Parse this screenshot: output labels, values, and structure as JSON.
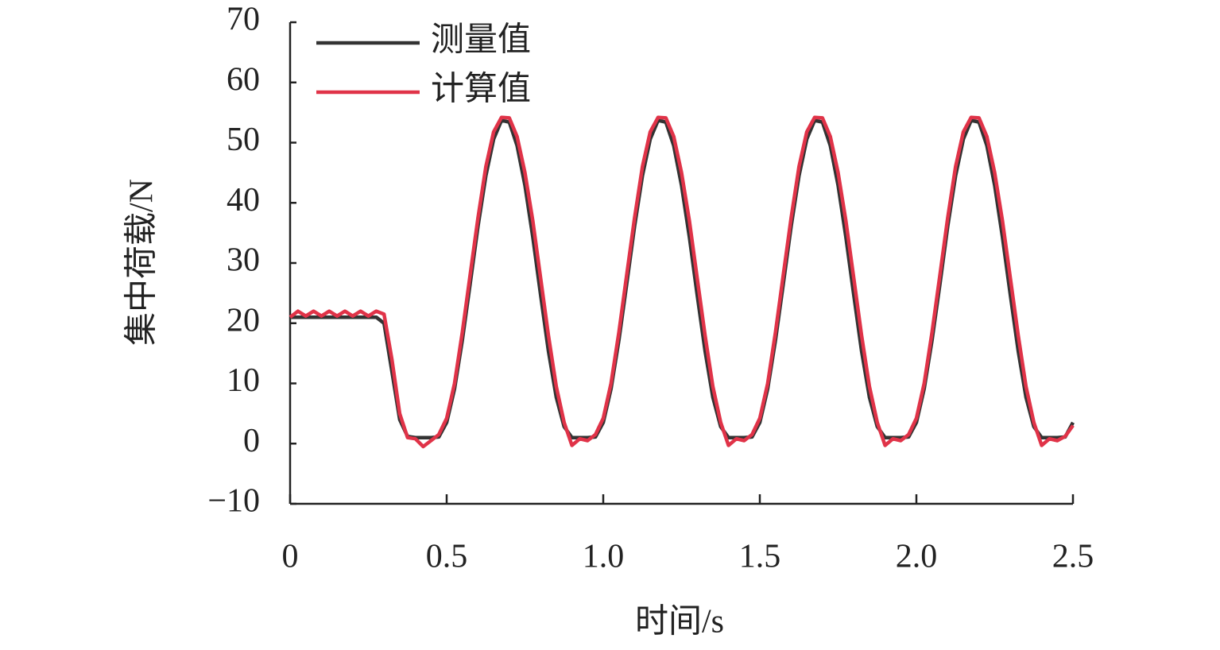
{
  "chart_data": {
    "type": "line",
    "xlabel": "时间/s",
    "ylabel": "集中荷载/N",
    "x": [
      0,
      0.025,
      0.05,
      0.075,
      0.1,
      0.125,
      0.15,
      0.175,
      0.2,
      0.225,
      0.25,
      0.275,
      0.3,
      0.325,
      0.35,
      0.375,
      0.4,
      0.425,
      0.45,
      0.475,
      0.5,
      0.525,
      0.55,
      0.575,
      0.6,
      0.625,
      0.65,
      0.675,
      0.7,
      0.725,
      0.75,
      0.775,
      0.8,
      0.825,
      0.85,
      0.875,
      0.9,
      0.925,
      0.95,
      0.975,
      1,
      1.025,
      1.05,
      1.075,
      1.1,
      1.125,
      1.15,
      1.175,
      1.2,
      1.225,
      1.25,
      1.275,
      1.3,
      1.325,
      1.35,
      1.375,
      1.4,
      1.425,
      1.45,
      1.475,
      1.5,
      1.525,
      1.55,
      1.575,
      1.6,
      1.625,
      1.65,
      1.675,
      1.7,
      1.725,
      1.75,
      1.775,
      1.8,
      1.825,
      1.85,
      1.875,
      1.9,
      1.925,
      1.95,
      1.975,
      2,
      2.025,
      2.05,
      2.075,
      2.1,
      2.125,
      2.15,
      2.175,
      2.2,
      2.225,
      2.25,
      2.275,
      2.3,
      2.325,
      2.35,
      2.375,
      2.4,
      2.425,
      2.45,
      2.475,
      2.5
    ],
    "series": [
      {
        "name": "测量值",
        "color": "#333333",
        "values": [
          21,
          21,
          21,
          21,
          21,
          21,
          21,
          21,
          21,
          21,
          21,
          21,
          20,
          12,
          4,
          1.2,
          1,
          1,
          1,
          1.1,
          3.5,
          9.1,
          17.2,
          26.5,
          36.1,
          44.5,
          50.6,
          53.7,
          53.4,
          49.5,
          42.9,
          34.3,
          24.7,
          15.4,
          7.7,
          2.8,
          1,
          1,
          1,
          1.1,
          3.5,
          9.1,
          17.2,
          26.5,
          36.1,
          44.5,
          50.6,
          53.7,
          53.4,
          49.5,
          42.9,
          34.3,
          24.7,
          15.4,
          7.7,
          2.8,
          1,
          1,
          1,
          1.1,
          3.5,
          9.1,
          17.2,
          26.5,
          36.1,
          44.5,
          50.6,
          53.7,
          53.4,
          49.5,
          42.9,
          34.3,
          24.7,
          15.4,
          7.7,
          2.8,
          1,
          1,
          1,
          1.1,
          3.5,
          9.1,
          17.2,
          26.5,
          36.1,
          44.5,
          50.6,
          53.7,
          53.4,
          49.5,
          42.9,
          34.3,
          24.7,
          15.4,
          7.7,
          2.8,
          1,
          1,
          1,
          1.1,
          3.5
        ]
      },
      {
        "name": "计算值",
        "color": "#e03348",
        "values": [
          21,
          22,
          21.2,
          22,
          21.2,
          22,
          21.2,
          22,
          21.2,
          22,
          21.2,
          22,
          21.5,
          14,
          5,
          1,
          0.8,
          -0.5,
          0.5,
          1.5,
          4.2,
          10,
          18.5,
          28,
          37.5,
          46,
          51.8,
          54.2,
          54.1,
          51,
          45,
          37,
          27.5,
          18,
          9.5,
          3.5,
          -0.3,
          0.8,
          0.5,
          1.5,
          4.2,
          10,
          18.5,
          28,
          37.5,
          46,
          51.8,
          54.2,
          54.1,
          51,
          45,
          37,
          27.5,
          18,
          9.5,
          3.5,
          -0.3,
          0.8,
          0.5,
          1.5,
          4.2,
          10,
          18.5,
          28,
          37.5,
          46,
          51.8,
          54.2,
          54.1,
          51,
          45,
          37,
          27.5,
          18,
          9.5,
          3.5,
          -0.3,
          0.8,
          0.5,
          1.5,
          4.2,
          10,
          18.5,
          28,
          37.5,
          46,
          51.8,
          54.2,
          54.1,
          51,
          45,
          37,
          27.5,
          18,
          9.5,
          3.5,
          -0.3,
          0.8,
          0.5,
          1.2,
          3
        ]
      }
    ],
    "xlim": [
      0,
      2.5
    ],
    "ylim": [
      -10,
      70
    ],
    "xticks": [
      0,
      0.5,
      {
        "value": 1,
        "label": "1.0"
      },
      1.5,
      {
        "value": 2,
        "label": "2.0"
      },
      2.5
    ],
    "yticks": [
      {
        "value": -10,
        "label": "−10"
      },
      0,
      10,
      20,
      30,
      40,
      50,
      60,
      70
    ],
    "grid": false,
    "legend": "upper left"
  }
}
